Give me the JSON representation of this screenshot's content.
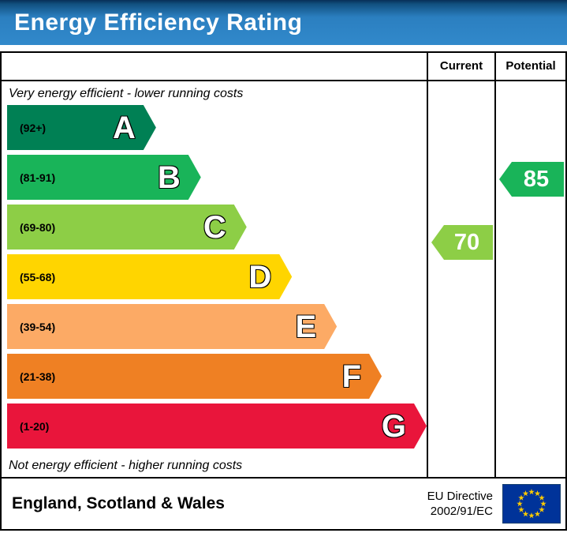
{
  "title": "Energy Efficiency Rating",
  "columns": {
    "current": "Current",
    "potential": "Potential"
  },
  "notes": {
    "top": "Very energy efficient - lower running costs",
    "bottom": "Not energy efficient - higher running costs"
  },
  "chart_data": {
    "type": "bar",
    "title": "Energy Efficiency Rating",
    "bands": [
      {
        "letter": "A",
        "label": "(92+)",
        "low": 92,
        "high": 100,
        "color": "#008054",
        "width_pct": 35.5
      },
      {
        "letter": "B",
        "label": "(81-91)",
        "low": 81,
        "high": 91,
        "color": "#19b459",
        "width_pct": 46.2
      },
      {
        "letter": "C",
        "label": "(69-80)",
        "low": 69,
        "high": 80,
        "color": "#8dce46",
        "width_pct": 57.1
      },
      {
        "letter": "D",
        "label": "(55-68)",
        "low": 55,
        "high": 68,
        "color": "#ffd500",
        "width_pct": 67.9
      },
      {
        "letter": "E",
        "label": "(39-54)",
        "low": 39,
        "high": 54,
        "color": "#fcaa65",
        "width_pct": 78.6
      },
      {
        "letter": "F",
        "label": "(21-38)",
        "low": 21,
        "high": 38,
        "color": "#ef8023",
        "width_pct": 89.3
      },
      {
        "letter": "G",
        "label": "(1-20)",
        "low": 1,
        "high": 20,
        "color": "#e9153b",
        "width_pct": 100
      }
    ],
    "current": {
      "value": 70,
      "color": "#8dce46"
    },
    "potential": {
      "value": 85,
      "color": "#19b459"
    }
  },
  "footer": {
    "region": "England, Scotland & Wales",
    "directive": [
      "EU Directive",
      "2002/91/EC"
    ],
    "flag_colors": {
      "field": "#003399",
      "stars": "#ffcc00"
    }
  }
}
